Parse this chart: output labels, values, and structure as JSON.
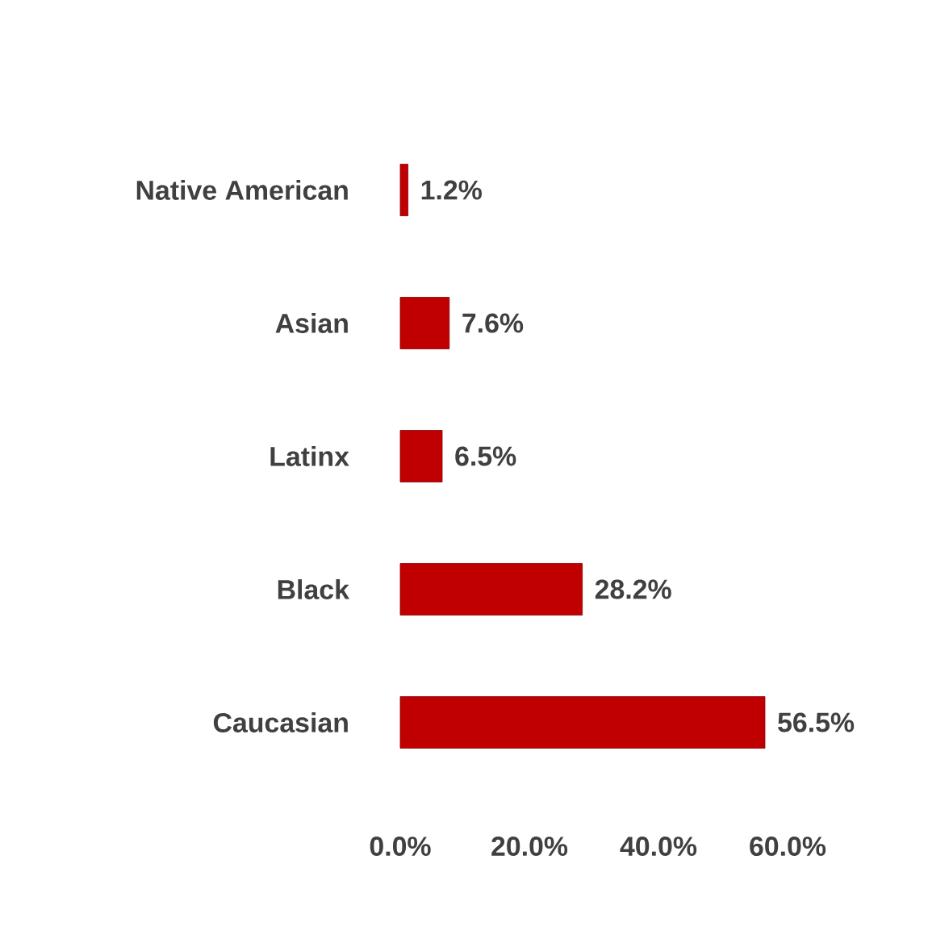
{
  "chart_data": {
    "type": "bar",
    "orientation": "horizontal",
    "categories": [
      "Native American",
      "Asian",
      "Latinx",
      "Black",
      "Caucasian"
    ],
    "values": [
      1.2,
      7.6,
      6.5,
      28.2,
      56.5
    ],
    "value_labels": [
      "1.2%",
      "7.6%",
      "6.5%",
      "28.2%",
      "56.5%"
    ],
    "color": "#c00000",
    "xlim": [
      0,
      60
    ],
    "xticks": [
      {
        "value": 0,
        "label": "0.0%"
      },
      {
        "value": 20,
        "label": "20.0%"
      },
      {
        "value": 40,
        "label": "40.0%"
      },
      {
        "value": 60,
        "label": "60.0%"
      }
    ],
    "grid": false
  }
}
